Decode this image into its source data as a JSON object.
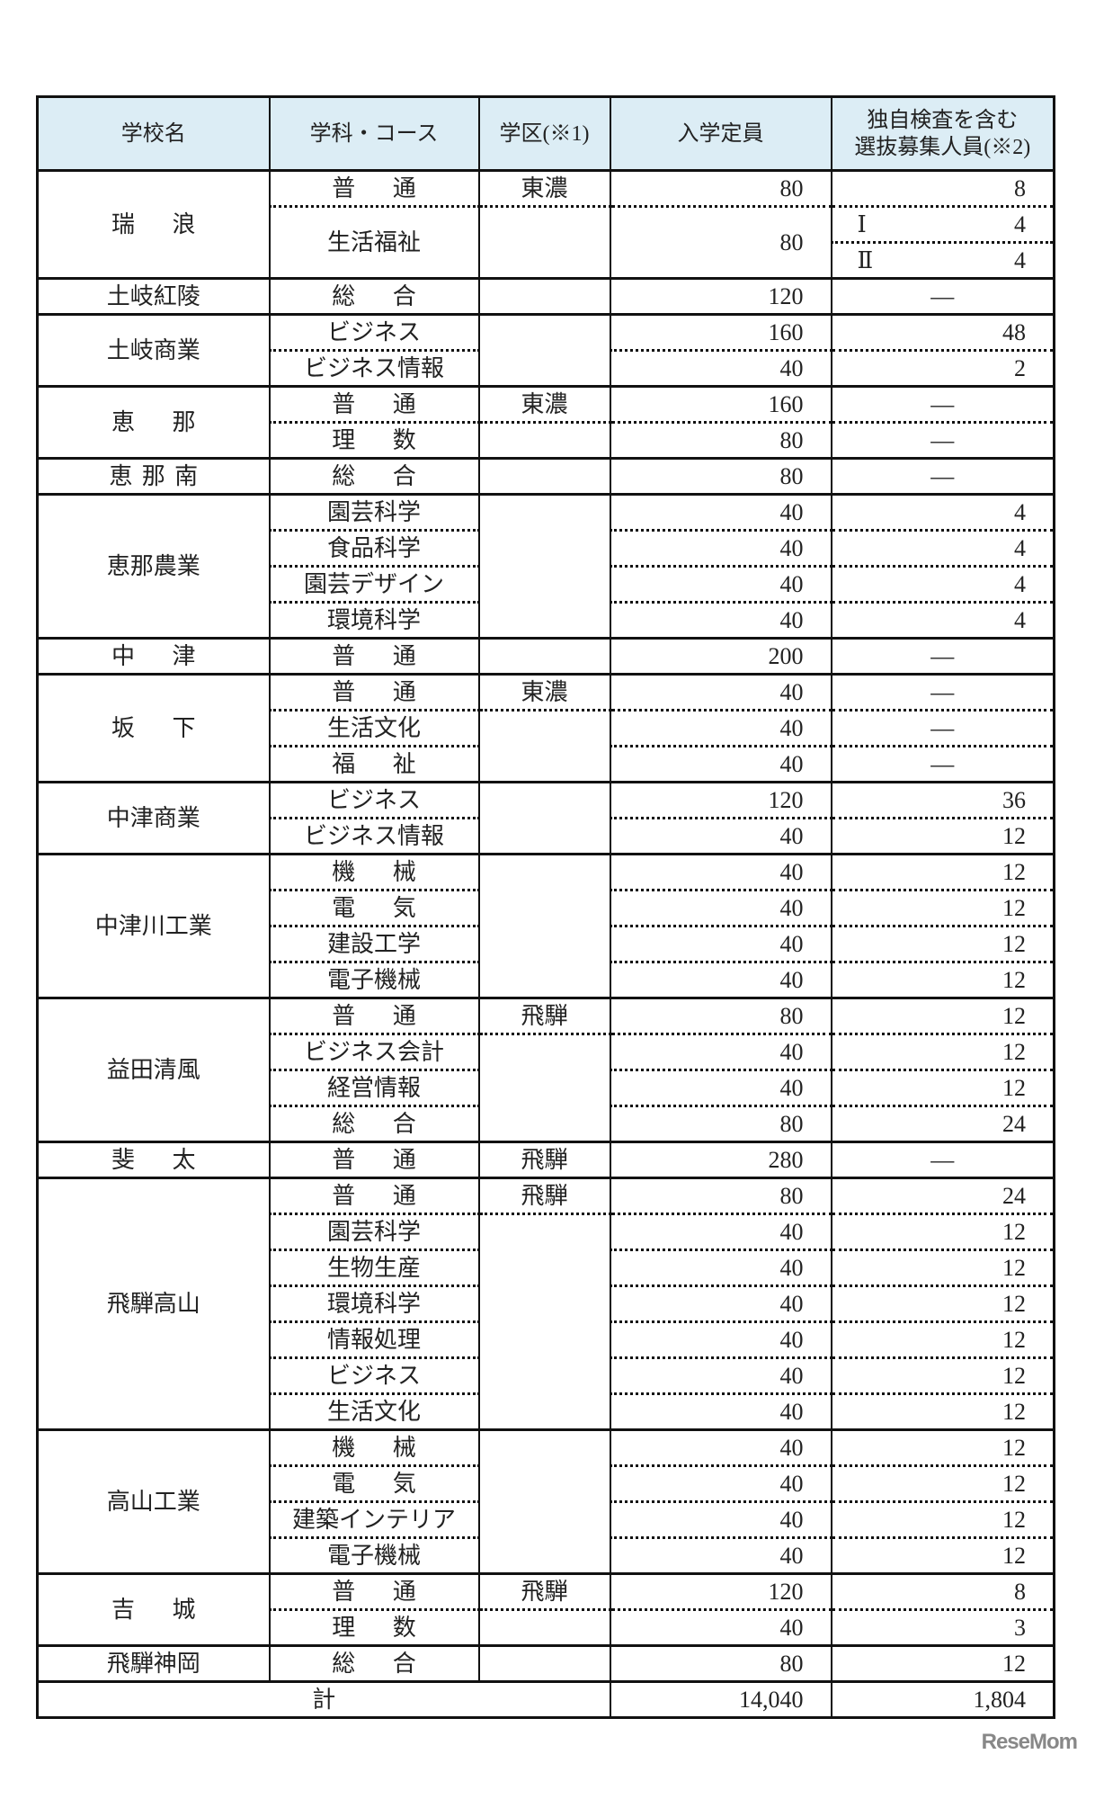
{
  "headers": {
    "school": "学校名",
    "course": "学科・コース",
    "district": "学区(※1)",
    "capacity": "入学定員",
    "selection_line1": "独自検査を含む",
    "selection_line2": "選抜募集人員(※2)"
  },
  "schools": [
    {
      "name": "瑞浪",
      "district": "東濃",
      "courses": [
        {
          "name": "普通",
          "capacity": "80",
          "selection": "8"
        },
        {
          "name": "生活福祉",
          "capacity": "80",
          "selection_split": [
            {
              "label": "Ⅰ",
              "value": "4"
            },
            {
              "label": "Ⅱ",
              "value": "4"
            }
          ]
        }
      ]
    },
    {
      "name": "土岐紅陵",
      "courses": [
        {
          "name": "総合",
          "capacity": "120",
          "selection": "—"
        }
      ]
    },
    {
      "name": "土岐商業",
      "courses": [
        {
          "name": "ビジネス",
          "capacity": "160",
          "selection": "48"
        },
        {
          "name": "ビジネス情報",
          "capacity": "40",
          "selection": "2"
        }
      ]
    },
    {
      "name": "恵那",
      "district": "東濃",
      "courses": [
        {
          "name": "普通",
          "capacity": "160",
          "selection": "—"
        },
        {
          "name": "理数",
          "capacity": "80",
          "selection": "—"
        }
      ]
    },
    {
      "name": "恵那南",
      "courses": [
        {
          "name": "総合",
          "capacity": "80",
          "selection": "—"
        }
      ]
    },
    {
      "name": "恵那農業",
      "courses": [
        {
          "name": "園芸科学",
          "capacity": "40",
          "selection": "4"
        },
        {
          "name": "食品科学",
          "capacity": "40",
          "selection": "4"
        },
        {
          "name": "園芸デザイン",
          "capacity": "40",
          "selection": "4"
        },
        {
          "name": "環境科学",
          "capacity": "40",
          "selection": "4"
        }
      ]
    },
    {
      "name": "中津",
      "courses": [
        {
          "name": "普通",
          "capacity": "200",
          "selection": "—"
        }
      ]
    },
    {
      "name": "坂下",
      "district": "東濃",
      "courses": [
        {
          "name": "普通",
          "capacity": "40",
          "selection": "—"
        },
        {
          "name": "生活文化",
          "capacity": "40",
          "selection": "—"
        },
        {
          "name": "福祉",
          "capacity": "40",
          "selection": "—"
        }
      ]
    },
    {
      "name": "中津商業",
      "courses": [
        {
          "name": "ビジネス",
          "capacity": "120",
          "selection": "36"
        },
        {
          "name": "ビジネス情報",
          "capacity": "40",
          "selection": "12"
        }
      ]
    },
    {
      "name": "中津川工業",
      "courses": [
        {
          "name": "機械",
          "capacity": "40",
          "selection": "12"
        },
        {
          "name": "電気",
          "capacity": "40",
          "selection": "12"
        },
        {
          "name": "建設工学",
          "capacity": "40",
          "selection": "12"
        },
        {
          "name": "電子機械",
          "capacity": "40",
          "selection": "12"
        }
      ]
    },
    {
      "name": "益田清風",
      "district": "飛騨",
      "courses": [
        {
          "name": "普通",
          "capacity": "80",
          "selection": "12"
        },
        {
          "name": "ビジネス会計",
          "capacity": "40",
          "selection": "12"
        },
        {
          "name": "経営情報",
          "capacity": "40",
          "selection": "12"
        },
        {
          "name": "総合",
          "capacity": "80",
          "selection": "24"
        }
      ]
    },
    {
      "name": "斐太",
      "district": "飛騨",
      "courses": [
        {
          "name": "普通",
          "capacity": "280",
          "selection": "—"
        }
      ]
    },
    {
      "name": "飛騨高山",
      "district": "飛騨",
      "courses": [
        {
          "name": "普通",
          "capacity": "80",
          "selection": "24"
        },
        {
          "name": "園芸科学",
          "capacity": "40",
          "selection": "12"
        },
        {
          "name": "生物生産",
          "capacity": "40",
          "selection": "12"
        },
        {
          "name": "環境科学",
          "capacity": "40",
          "selection": "12"
        },
        {
          "name": "情報処理",
          "capacity": "40",
          "selection": "12"
        },
        {
          "name": "ビジネス",
          "capacity": "40",
          "selection": "12"
        },
        {
          "name": "生活文化",
          "capacity": "40",
          "selection": "12"
        }
      ]
    },
    {
      "name": "高山工業",
      "courses": [
        {
          "name": "機械",
          "capacity": "40",
          "selection": "12"
        },
        {
          "name": "電気",
          "capacity": "40",
          "selection": "12"
        },
        {
          "name": "建築インテリア",
          "capacity": "40",
          "selection": "12"
        },
        {
          "name": "電子機械",
          "capacity": "40",
          "selection": "12"
        }
      ]
    },
    {
      "name": "吉城",
      "district": "飛騨",
      "courses": [
        {
          "name": "普通",
          "capacity": "120",
          "selection": "8"
        },
        {
          "name": "理数",
          "capacity": "40",
          "selection": "3"
        }
      ]
    },
    {
      "name": "飛騨神岡",
      "courses": [
        {
          "name": "総合",
          "capacity": "80",
          "selection": "12"
        }
      ]
    }
  ],
  "total": {
    "label": "計",
    "capacity": "14,040",
    "selection": "1,804"
  },
  "watermark": "ReseMom"
}
